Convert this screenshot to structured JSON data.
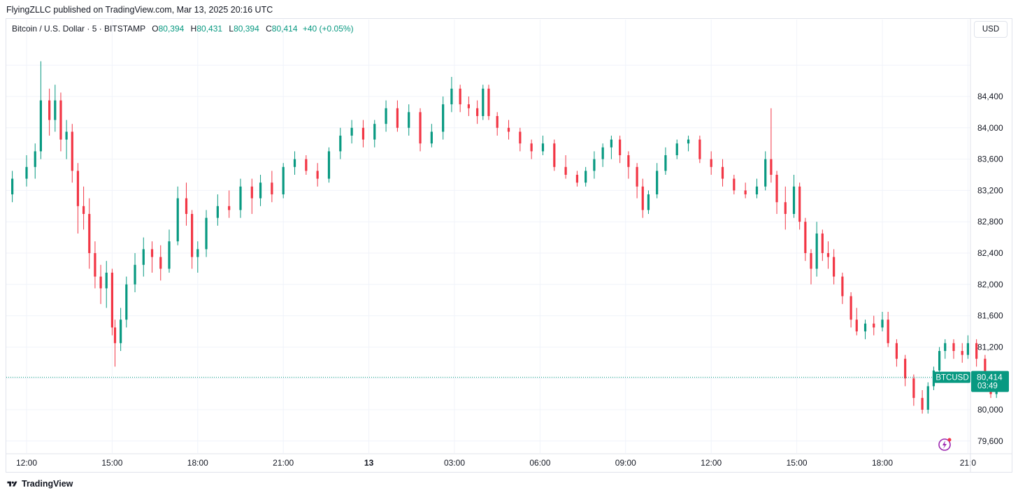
{
  "publisher": "FlyingZLLC published on TradingView.com, Mar 13, 2025 20:16 UTC",
  "legend": {
    "symbol": "Bitcoin / U.S. Dollar · 5 · BITSTAMP",
    "o_key": "O",
    "o_val": "80,394",
    "h_key": "H",
    "h_val": "80,431",
    "l_key": "L",
    "l_val": "80,394",
    "c_key": "C",
    "c_val": "80,414",
    "change": "+40 (+0.05%)"
  },
  "currency_button": "USD",
  "price_tag": {
    "symbol": "BTCUSD",
    "price": "80,414",
    "countdown": "03:49"
  },
  "footer": {
    "brand": "TradingView"
  },
  "colors": {
    "up": "#089981",
    "down": "#f23645",
    "grid": "#f0f3fa",
    "text": "#131722"
  },
  "icons": [
    "tradingview-logo-icon",
    "lightning-sparkle-icon"
  ],
  "chart_data": {
    "type": "candlestick",
    "ylim": [
      79500,
      84700
    ],
    "y_ticks": [
      79600,
      80000,
      80400,
      80800,
      81200,
      81600,
      82000,
      82400,
      82800,
      83200,
      83600,
      84000,
      84400
    ],
    "y_tick_labels": [
      "79,600",
      "80,000",
      "80,800",
      "81,200",
      "81,600",
      "82,000",
      "82,400",
      "82,800",
      "83,200",
      "83,600",
      "84,000",
      "84,400"
    ],
    "x_ticks": [
      12,
      15,
      18,
      21,
      24,
      27,
      30,
      33,
      36,
      39,
      42,
      45
    ],
    "x_tick_labels": [
      "12:00",
      "15:00",
      "18:00",
      "21:00",
      "13",
      "03:00",
      "06:00",
      "09:00",
      "12:00",
      "15:00",
      "18:00",
      "21:0"
    ],
    "last_price": 80414,
    "series": [
      {
        "x": 11.0,
        "open": 82650,
        "high": 82800,
        "low": 82550,
        "close": 82700
      },
      {
        "x": 11.5,
        "open": 82750,
        "high": 83050,
        "low": 82650,
        "close": 82950
      },
      {
        "x": 12.0,
        "open": 82950,
        "high": 83250,
        "low": 82850,
        "close": 83100
      },
      {
        "x": 12.3,
        "open": 83100,
        "high": 83400,
        "low": 82950,
        "close": 83300
      },
      {
        "x": 12.5,
        "open": 83300,
        "high": 84450,
        "low": 83200,
        "close": 83950
      },
      {
        "x": 12.8,
        "open": 83950,
        "high": 84100,
        "low": 83500,
        "close": 83700
      },
      {
        "x": 13.0,
        "open": 83700,
        "high": 84150,
        "low": 83550,
        "close": 83950
      },
      {
        "x": 13.2,
        "open": 83950,
        "high": 84050,
        "low": 83300,
        "close": 83450
      },
      {
        "x": 13.4,
        "open": 83450,
        "high": 83700,
        "low": 83200,
        "close": 83550
      },
      {
        "x": 13.6,
        "open": 83550,
        "high": 83650,
        "low": 82900,
        "close": 83050
      },
      {
        "x": 13.8,
        "open": 83050,
        "high": 83150,
        "low": 82250,
        "close": 82600
      },
      {
        "x": 14.0,
        "open": 82600,
        "high": 82850,
        "low": 82300,
        "close": 82500
      },
      {
        "x": 14.2,
        "open": 82500,
        "high": 82700,
        "low": 81800,
        "close": 82000
      },
      {
        "x": 14.4,
        "open": 82000,
        "high": 82150,
        "low": 81550,
        "close": 81700
      },
      {
        "x": 14.6,
        "open": 81700,
        "high": 81850,
        "low": 81350,
        "close": 81550
      },
      {
        "x": 14.8,
        "open": 81550,
        "high": 81900,
        "low": 81300,
        "close": 81750
      },
      {
        "x": 15.0,
        "open": 81750,
        "high": 81800,
        "low": 80950,
        "close": 81050
      },
      {
        "x": 15.1,
        "open": 81050,
        "high": 81150,
        "low": 80550,
        "close": 80850
      },
      {
        "x": 15.3,
        "open": 80850,
        "high": 81300,
        "low": 80750,
        "close": 81150
      },
      {
        "x": 15.5,
        "open": 81150,
        "high": 81700,
        "low": 81050,
        "close": 81600
      },
      {
        "x": 15.8,
        "open": 81600,
        "high": 82000,
        "low": 81500,
        "close": 81850
      },
      {
        "x": 16.1,
        "open": 81850,
        "high": 82200,
        "low": 81700,
        "close": 82050
      },
      {
        "x": 16.4,
        "open": 82050,
        "high": 82150,
        "low": 81750,
        "close": 81950
      },
      {
        "x": 16.7,
        "open": 81950,
        "high": 82100,
        "low": 81650,
        "close": 81800
      },
      {
        "x": 17.0,
        "open": 81800,
        "high": 82300,
        "low": 81750,
        "close": 82150
      },
      {
        "x": 17.3,
        "open": 82150,
        "high": 82850,
        "low": 82100,
        "close": 82700
      },
      {
        "x": 17.6,
        "open": 82700,
        "high": 82900,
        "low": 82350,
        "close": 82500
      },
      {
        "x": 17.8,
        "open": 82500,
        "high": 82550,
        "low": 81800,
        "close": 81950
      },
      {
        "x": 18.0,
        "open": 81950,
        "high": 82150,
        "low": 81750,
        "close": 82050
      },
      {
        "x": 18.3,
        "open": 82050,
        "high": 82550,
        "low": 81950,
        "close": 82450
      },
      {
        "x": 18.7,
        "open": 82450,
        "high": 82750,
        "low": 82350,
        "close": 82600
      },
      {
        "x": 19.1,
        "open": 82600,
        "high": 82800,
        "low": 82450,
        "close": 82550
      },
      {
        "x": 19.5,
        "open": 82550,
        "high": 82950,
        "low": 82450,
        "close": 82850
      },
      {
        "x": 19.9,
        "open": 82850,
        "high": 82950,
        "low": 82500,
        "close": 82700
      },
      {
        "x": 20.2,
        "open": 82700,
        "high": 83000,
        "low": 82600,
        "close": 82900
      },
      {
        "x": 20.6,
        "open": 82900,
        "high": 83050,
        "low": 82650,
        "close": 82750
      },
      {
        "x": 21.0,
        "open": 82750,
        "high": 83150,
        "low": 82700,
        "close": 83100
      },
      {
        "x": 21.4,
        "open": 83100,
        "high": 83300,
        "low": 83000,
        "close": 83200
      },
      {
        "x": 21.8,
        "open": 83200,
        "high": 83250,
        "low": 83000,
        "close": 83050
      },
      {
        "x": 22.2,
        "open": 83050,
        "high": 83150,
        "low": 82850,
        "close": 82950
      },
      {
        "x": 22.6,
        "open": 82950,
        "high": 83350,
        "low": 82900,
        "close": 83300
      },
      {
        "x": 23.0,
        "open": 83300,
        "high": 83600,
        "low": 83200,
        "close": 83500
      },
      {
        "x": 23.4,
        "open": 83500,
        "high": 83700,
        "low": 83400,
        "close": 83600
      },
      {
        "x": 23.8,
        "open": 83600,
        "high": 83700,
        "low": 83350,
        "close": 83450
      },
      {
        "x": 24.2,
        "open": 83450,
        "high": 83700,
        "low": 83350,
        "close": 83650
      },
      {
        "x": 24.6,
        "open": 83650,
        "high": 83950,
        "low": 83550,
        "close": 83850
      },
      {
        "x": 25.0,
        "open": 83850,
        "high": 83950,
        "low": 83550,
        "close": 83600
      },
      {
        "x": 25.4,
        "open": 83600,
        "high": 83900,
        "low": 83500,
        "close": 83800
      },
      {
        "x": 25.8,
        "open": 83800,
        "high": 83850,
        "low": 83300,
        "close": 83400
      },
      {
        "x": 26.2,
        "open": 83400,
        "high": 83650,
        "low": 83350,
        "close": 83550
      },
      {
        "x": 26.6,
        "open": 83550,
        "high": 84000,
        "low": 83450,
        "close": 83900
      },
      {
        "x": 26.9,
        "open": 83900,
        "high": 84250,
        "low": 83800,
        "close": 84100
      },
      {
        "x": 27.2,
        "open": 84100,
        "high": 84150,
        "low": 83800,
        "close": 83900
      },
      {
        "x": 27.5,
        "open": 83900,
        "high": 84000,
        "low": 83750,
        "close": 83850
      },
      {
        "x": 27.8,
        "open": 83850,
        "high": 83950,
        "low": 83650,
        "close": 83750
      },
      {
        "x": 28.0,
        "open": 83750,
        "high": 84150,
        "low": 83700,
        "close": 84100
      },
      {
        "x": 28.2,
        "open": 84100,
        "high": 84150,
        "low": 83700,
        "close": 83750
      },
      {
        "x": 28.5,
        "open": 83750,
        "high": 83800,
        "low": 83500,
        "close": 83600
      },
      {
        "x": 28.9,
        "open": 83600,
        "high": 83700,
        "low": 83450,
        "close": 83550
      },
      {
        "x": 29.3,
        "open": 83550,
        "high": 83600,
        "low": 83300,
        "close": 83400
      },
      {
        "x": 29.7,
        "open": 83400,
        "high": 83450,
        "low": 83200,
        "close": 83300
      },
      {
        "x": 30.1,
        "open": 83300,
        "high": 83500,
        "low": 83250,
        "close": 83400
      },
      {
        "x": 30.5,
        "open": 83400,
        "high": 83450,
        "low": 83050,
        "close": 83100
      },
      {
        "x": 30.9,
        "open": 83100,
        "high": 83250,
        "low": 82950,
        "close": 83000
      },
      {
        "x": 31.3,
        "open": 83000,
        "high": 83050,
        "low": 82850,
        "close": 82900
      },
      {
        "x": 31.6,
        "open": 82900,
        "high": 83100,
        "low": 82850,
        "close": 83050
      },
      {
        "x": 31.9,
        "open": 83050,
        "high": 83300,
        "low": 82950,
        "close": 83200
      },
      {
        "x": 32.2,
        "open": 83200,
        "high": 83400,
        "low": 83100,
        "close": 83350
      },
      {
        "x": 32.5,
        "open": 83350,
        "high": 83500,
        "low": 83200,
        "close": 83450
      },
      {
        "x": 32.8,
        "open": 83450,
        "high": 83500,
        "low": 83150,
        "close": 83250
      },
      {
        "x": 33.1,
        "open": 83250,
        "high": 83300,
        "low": 82950,
        "close": 83100
      },
      {
        "x": 33.4,
        "open": 83100,
        "high": 83150,
        "low": 82700,
        "close": 82850
      },
      {
        "x": 33.6,
        "open": 82850,
        "high": 82950,
        "low": 82450,
        "close": 82550
      },
      {
        "x": 33.8,
        "open": 82550,
        "high": 82800,
        "low": 82500,
        "close": 82750
      },
      {
        "x": 34.1,
        "open": 82750,
        "high": 83150,
        "low": 82700,
        "close": 83050
      },
      {
        "x": 34.4,
        "open": 83050,
        "high": 83350,
        "low": 83000,
        "close": 83250
      },
      {
        "x": 34.8,
        "open": 83250,
        "high": 83450,
        "low": 83200,
        "close": 83400
      },
      {
        "x": 35.2,
        "open": 83400,
        "high": 83500,
        "low": 83300,
        "close": 83450
      },
      {
        "x": 35.6,
        "open": 83450,
        "high": 83500,
        "low": 83150,
        "close": 83200
      },
      {
        "x": 36.0,
        "open": 83200,
        "high": 83300,
        "low": 83000,
        "close": 83100
      },
      {
        "x": 36.4,
        "open": 83100,
        "high": 83200,
        "low": 82850,
        "close": 82950
      },
      {
        "x": 36.8,
        "open": 82950,
        "high": 83000,
        "low": 82750,
        "close": 82800
      },
      {
        "x": 37.2,
        "open": 82800,
        "high": 82900,
        "low": 82700,
        "close": 82750
      },
      {
        "x": 37.6,
        "open": 82750,
        "high": 82950,
        "low": 82700,
        "close": 82850
      },
      {
        "x": 37.9,
        "open": 82850,
        "high": 83300,
        "low": 82800,
        "close": 83200
      },
      {
        "x": 38.1,
        "open": 83200,
        "high": 83850,
        "low": 82900,
        "close": 83000
      },
      {
        "x": 38.3,
        "open": 83000,
        "high": 83050,
        "low": 82500,
        "close": 82650
      },
      {
        "x": 38.6,
        "open": 82650,
        "high": 82850,
        "low": 82300,
        "close": 82500
      },
      {
        "x": 38.9,
        "open": 82500,
        "high": 83000,
        "low": 82450,
        "close": 82850
      },
      {
        "x": 39.1,
        "open": 82850,
        "high": 82900,
        "low": 82300,
        "close": 82400
      },
      {
        "x": 39.3,
        "open": 82400,
        "high": 82450,
        "low": 81900,
        "close": 82000
      },
      {
        "x": 39.5,
        "open": 82000,
        "high": 82050,
        "low": 81600,
        "close": 81800
      },
      {
        "x": 39.7,
        "open": 81800,
        "high": 82400,
        "low": 81700,
        "close": 82250
      },
      {
        "x": 39.9,
        "open": 82250,
        "high": 82300,
        "low": 81900,
        "close": 82000
      },
      {
        "x": 40.1,
        "open": 82000,
        "high": 82150,
        "low": 81800,
        "close": 81950
      },
      {
        "x": 40.3,
        "open": 81950,
        "high": 82050,
        "low": 81600,
        "close": 81700
      },
      {
        "x": 40.6,
        "open": 81700,
        "high": 81750,
        "low": 81350,
        "close": 81450
      },
      {
        "x": 40.9,
        "open": 81450,
        "high": 81500,
        "low": 81050,
        "close": 81150
      },
      {
        "x": 41.1,
        "open": 81150,
        "high": 81300,
        "low": 80950,
        "close": 81000
      },
      {
        "x": 41.4,
        "open": 81000,
        "high": 81150,
        "low": 80900,
        "close": 81100
      },
      {
        "x": 41.7,
        "open": 81100,
        "high": 81200,
        "low": 80950,
        "close": 81050
      },
      {
        "x": 42.0,
        "open": 81050,
        "high": 81250,
        "low": 81000,
        "close": 81150
      },
      {
        "x": 42.2,
        "open": 81150,
        "high": 81250,
        "low": 80800,
        "close": 80850
      },
      {
        "x": 42.5,
        "open": 80850,
        "high": 80900,
        "low": 80550,
        "close": 80650
      },
      {
        "x": 42.8,
        "open": 80650,
        "high": 80700,
        "low": 80300,
        "close": 80400
      },
      {
        "x": 43.1,
        "open": 80400,
        "high": 80450,
        "low": 80050,
        "close": 80150
      },
      {
        "x": 43.4,
        "open": 80150,
        "high": 80250,
        "low": 79950,
        "close": 80000
      },
      {
        "x": 43.6,
        "open": 80000,
        "high": 80350,
        "low": 79950,
        "close": 80300
      },
      {
        "x": 43.8,
        "open": 80300,
        "high": 80550,
        "low": 80250,
        "close": 80500
      },
      {
        "x": 44.0,
        "open": 80500,
        "high": 80800,
        "low": 80450,
        "close": 80750
      },
      {
        "x": 44.2,
        "open": 80750,
        "high": 80900,
        "low": 80650,
        "close": 80850
      },
      {
        "x": 44.5,
        "open": 80850,
        "high": 80900,
        "low": 80650,
        "close": 80750
      },
      {
        "x": 44.8,
        "open": 80750,
        "high": 80850,
        "low": 80600,
        "close": 80700
      },
      {
        "x": 45.0,
        "open": 80700,
        "high": 80950,
        "low": 80650,
        "close": 80850
      },
      {
        "x": 45.3,
        "open": 80850,
        "high": 80900,
        "low": 80550,
        "close": 80650
      },
      {
        "x": 45.6,
        "open": 80650,
        "high": 80700,
        "low": 80300,
        "close": 80400
      },
      {
        "x": 45.8,
        "open": 80400,
        "high": 80450,
        "low": 80150,
        "close": 80200
      },
      {
        "x": 46.0,
        "open": 80200,
        "high": 80450,
        "low": 80150,
        "close": 80350
      },
      {
        "x": 46.2,
        "open": 80350,
        "high": 80450,
        "low": 80300,
        "close": 80414
      }
    ]
  }
}
